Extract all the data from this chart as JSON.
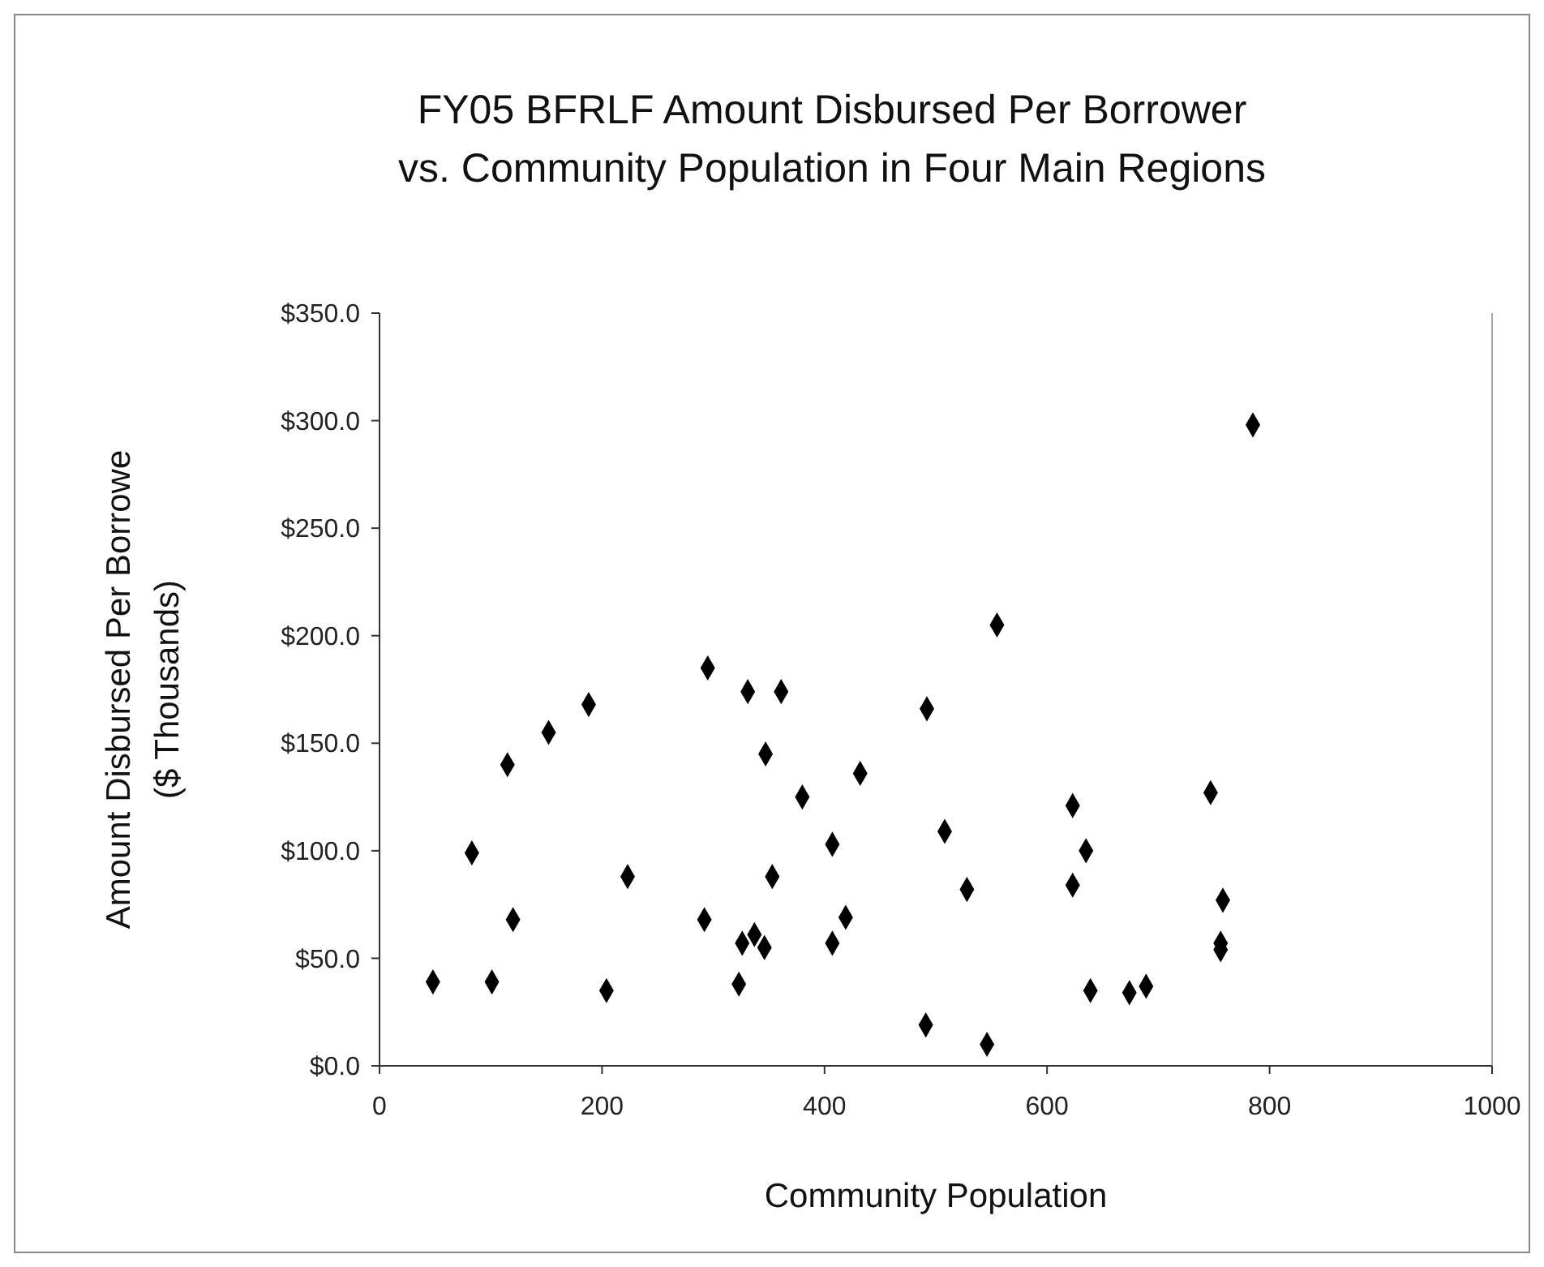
{
  "chart_data": {
    "type": "scatter",
    "title": "FY05 BFRLF Amount Disbursed Per Borrower\nvs. Community Population in Four Main Regions",
    "xlabel": "Community Population",
    "ylabel": "Amount Disbursed Per Borrowe\n($ Thousands)",
    "marker": "diamond",
    "xlim": [
      0,
      1000
    ],
    "xticks": [
      0,
      200,
      400,
      600,
      800,
      1000
    ],
    "ylim": [
      0,
      350
    ],
    "yticks": [
      {
        "value": 0,
        "label": "$0.0"
      },
      {
        "value": 50,
        "label": "$50.0"
      },
      {
        "value": 100,
        "label": "$100.0"
      },
      {
        "value": 150,
        "label": "$150.0"
      },
      {
        "value": 200,
        "label": "$200.0"
      },
      {
        "value": 250,
        "label": "$250.0"
      },
      {
        "value": 300,
        "label": "$300.0"
      },
      {
        "value": 350,
        "label": "$350.0"
      }
    ],
    "series": [
      {
        "color": "#000000",
        "x": [
          48,
          101,
          120,
          83,
          115,
          152,
          188,
          223,
          204,
          292,
          295,
          331,
          361,
          347,
          380,
          353,
          407,
          432,
          419,
          407,
          326,
          337,
          346,
          323,
          492,
          508,
          491,
          785,
          555,
          623,
          747,
          635,
          528,
          623,
          758,
          756,
          756,
          639,
          674,
          689,
          546
        ],
        "values": [
          39,
          39,
          68,
          99,
          140,
          155,
          168,
          88,
          35,
          68,
          185,
          174,
          174,
          145,
          125,
          88,
          103,
          136,
          69,
          57,
          57,
          61,
          55,
          38,
          166,
          109,
          19,
          298,
          205,
          121,
          127,
          100,
          82,
          84,
          77,
          57,
          54,
          35,
          34,
          37,
          10
        ]
      }
    ]
  }
}
